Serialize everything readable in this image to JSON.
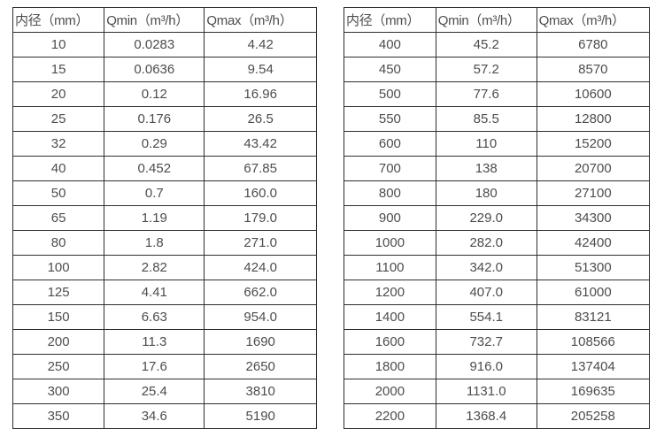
{
  "colors": {
    "border": "#2e2e2e",
    "text": "#4d4d4d",
    "background": "#ffffff"
  },
  "left_table": {
    "headers": [
      "内径（mm）",
      "Qmin（m³/h）",
      "Qmax（m³/h）"
    ],
    "rows": [
      [
        "10",
        "0.0283",
        "4.42"
      ],
      [
        "15",
        "0.0636",
        "9.54"
      ],
      [
        "20",
        "0.12",
        "16.96"
      ],
      [
        "25",
        "0.176",
        "26.5"
      ],
      [
        "32",
        "0.29",
        "43.42"
      ],
      [
        "40",
        "0.452",
        "67.85"
      ],
      [
        "50",
        "0.7",
        "160.0"
      ],
      [
        "65",
        "1.19",
        "179.0"
      ],
      [
        "80",
        "1.8",
        "271.0"
      ],
      [
        "100",
        "2.82",
        "424.0"
      ],
      [
        "125",
        "4.41",
        "662.0"
      ],
      [
        "150",
        "6.63",
        "954.0"
      ],
      [
        "200",
        "11.3",
        "1690"
      ],
      [
        "250",
        "17.6",
        "2650"
      ],
      [
        "300",
        "25.4",
        "3810"
      ],
      [
        "350",
        "34.6",
        "5190"
      ]
    ]
  },
  "right_table": {
    "headers": [
      "内径（mm）",
      "Qmin（m³/h）",
      "Qmax（m³/h）"
    ],
    "rows": [
      [
        "400",
        "45.2",
        "6780"
      ],
      [
        "450",
        "57.2",
        "8570"
      ],
      [
        "500",
        "77.6",
        "10600"
      ],
      [
        "550",
        "85.5",
        "12800"
      ],
      [
        "600",
        "110",
        "15200"
      ],
      [
        "700",
        "138",
        "20700"
      ],
      [
        "800",
        "180",
        "27100"
      ],
      [
        "900",
        "229.0",
        "34300"
      ],
      [
        "1000",
        "282.0",
        "42400"
      ],
      [
        "1100",
        "342.0",
        "51300"
      ],
      [
        "1200",
        "407.0",
        "61000"
      ],
      [
        "1400",
        "554.1",
        "83121"
      ],
      [
        "1600",
        "732.7",
        "108566"
      ],
      [
        "1800",
        "916.0",
        "137404"
      ],
      [
        "2000",
        "1131.0",
        "169635"
      ],
      [
        "2200",
        "1368.4",
        "205258"
      ]
    ]
  }
}
